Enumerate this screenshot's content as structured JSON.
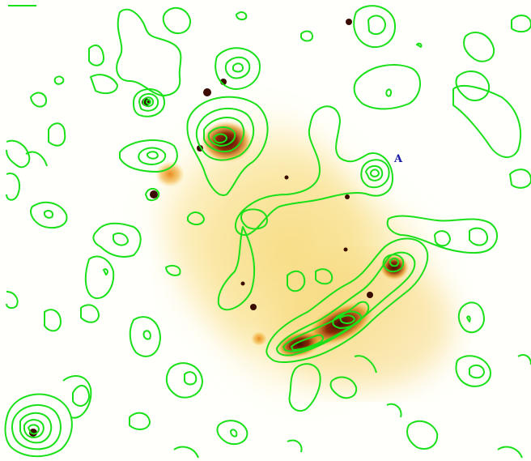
{
  "labels": {
    "source_a": "A"
  },
  "colors": {
    "background": "#fffffb",
    "contour": "#19e019",
    "emission_core": "#5a1a05",
    "emission_halo": "#f6dc7a",
    "label": "#1a1aa6"
  }
}
